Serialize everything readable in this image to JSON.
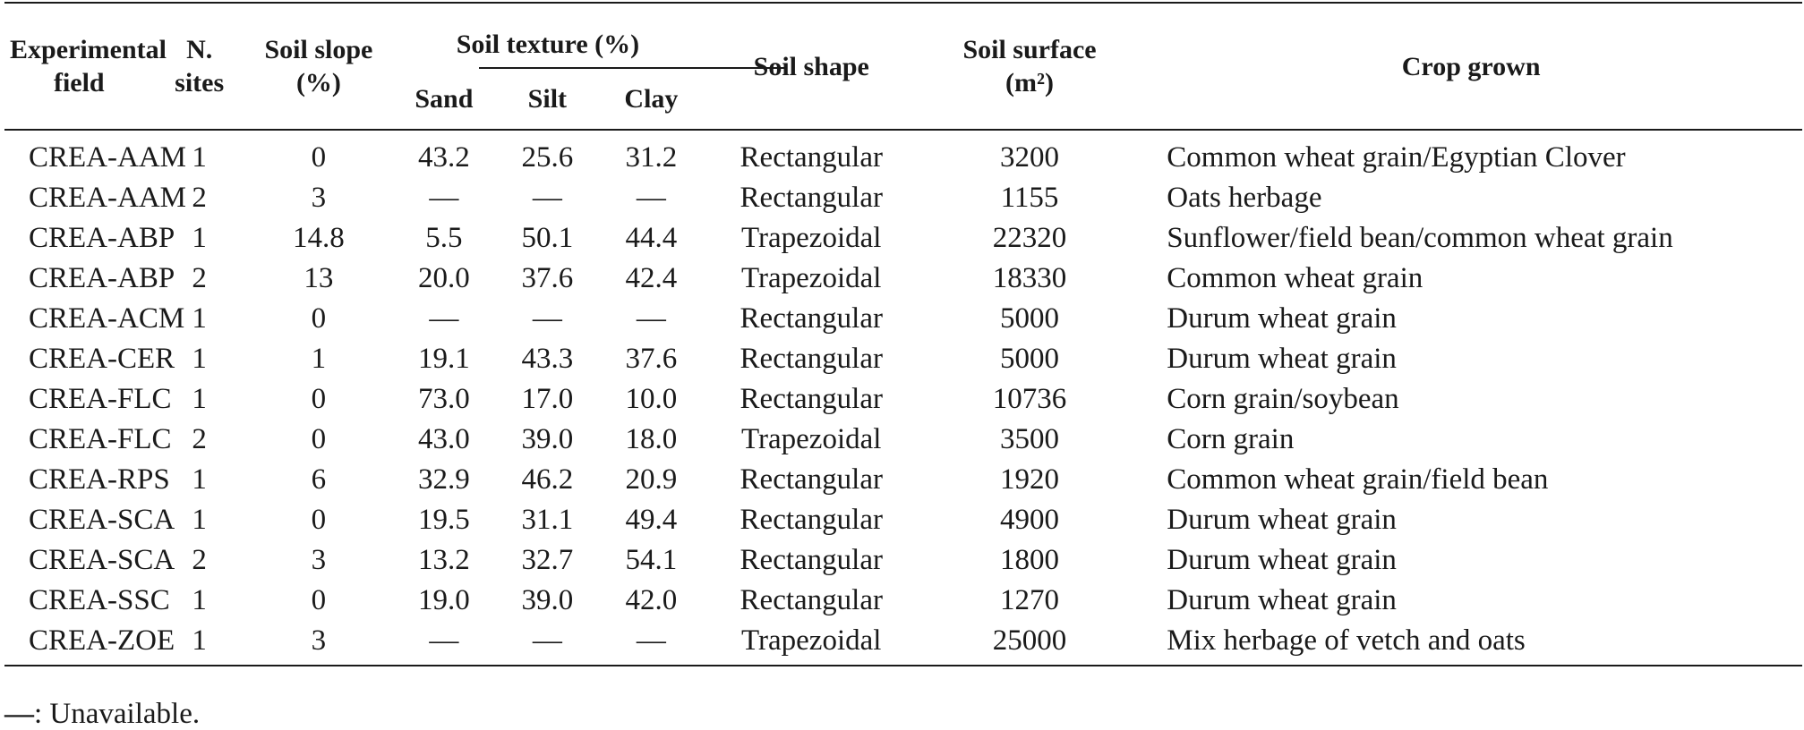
{
  "table": {
    "headers": {
      "experimental_field": "Experimental field",
      "n_sites": "N. sites",
      "soil_slope": "Soil slope (%)",
      "soil_texture": "Soil texture (%)",
      "sand": "Sand",
      "silt": "Silt",
      "clay": "Clay",
      "soil_shape": "Soil shape",
      "soil_surface": "Soil surface",
      "soil_surface_unit": "(m²)",
      "crop_grown": "Crop grown"
    },
    "rows": [
      {
        "field": "CREA-AAM",
        "sites": "1",
        "slope": "0",
        "sand": "43.2",
        "silt": "25.6",
        "clay": "31.2",
        "shape": "Rectangular",
        "surface": "3200",
        "crop": "Common wheat grain/Egyptian Clover"
      },
      {
        "field": "CREA-AAM",
        "sites": "2",
        "slope": "3",
        "sand": "—",
        "silt": "—",
        "clay": "—",
        "shape": "Rectangular",
        "surface": "1155",
        "crop": "Oats herbage"
      },
      {
        "field": "CREA-ABP",
        "sites": "1",
        "slope": "14.8",
        "sand": "5.5",
        "silt": "50.1",
        "clay": "44.4",
        "shape": "Trapezoidal",
        "surface": "22320",
        "crop": "Sunflower/field bean/common wheat grain"
      },
      {
        "field": "CREA-ABP",
        "sites": "2",
        "slope": "13",
        "sand": "20.0",
        "silt": "37.6",
        "clay": "42.4",
        "shape": "Trapezoidal",
        "surface": "18330",
        "crop": "Common wheat grain"
      },
      {
        "field": "CREA-ACM",
        "sites": "1",
        "slope": "0",
        "sand": "—",
        "silt": "—",
        "clay": "—",
        "shape": "Rectangular",
        "surface": "5000",
        "crop": "Durum wheat grain"
      },
      {
        "field": "CREA-CER",
        "sites": "1",
        "slope": "1",
        "sand": "19.1",
        "silt": "43.3",
        "clay": "37.6",
        "shape": "Rectangular",
        "surface": "5000",
        "crop": "Durum wheat grain"
      },
      {
        "field": "CREA-FLC",
        "sites": "1",
        "slope": "0",
        "sand": "73.0",
        "silt": "17.0",
        "clay": "10.0",
        "shape": "Rectangular",
        "surface": "10736",
        "crop": "Corn grain/soybean"
      },
      {
        "field": "CREA-FLC",
        "sites": "2",
        "slope": "0",
        "sand": "43.0",
        "silt": "39.0",
        "clay": "18.0",
        "shape": "Trapezoidal",
        "surface": "3500",
        "crop": "Corn grain"
      },
      {
        "field": "CREA-RPS",
        "sites": "1",
        "slope": "6",
        "sand": "32.9",
        "silt": "46.2",
        "clay": "20.9",
        "shape": "Rectangular",
        "surface": "1920",
        "crop": "Common wheat grain/field bean"
      },
      {
        "field": "CREA-SCA",
        "sites": "1",
        "slope": "0",
        "sand": "19.5",
        "silt": "31.1",
        "clay": "49.4",
        "shape": "Rectangular",
        "surface": "4900",
        "crop": "Durum wheat grain"
      },
      {
        "field": "CREA-SCA",
        "sites": "2",
        "slope": "3",
        "sand": "13.2",
        "silt": "32.7",
        "clay": "54.1",
        "shape": "Rectangular",
        "surface": "1800",
        "crop": "Durum wheat grain"
      },
      {
        "field": "CREA-SSC",
        "sites": "1",
        "slope": "0",
        "sand": "19.0",
        "silt": "39.0",
        "clay": "42.0",
        "shape": "Rectangular",
        "surface": "1270",
        "crop": "Durum wheat grain"
      },
      {
        "field": "CREA-ZOE",
        "sites": "1",
        "slope": "3",
        "sand": "—",
        "silt": "—",
        "clay": "—",
        "shape": "Trapezoidal",
        "surface": "25000",
        "crop": "Mix herbage of vetch and oats"
      }
    ]
  },
  "footnote": {
    "symbol": "—",
    "text": ": Unavailable."
  }
}
